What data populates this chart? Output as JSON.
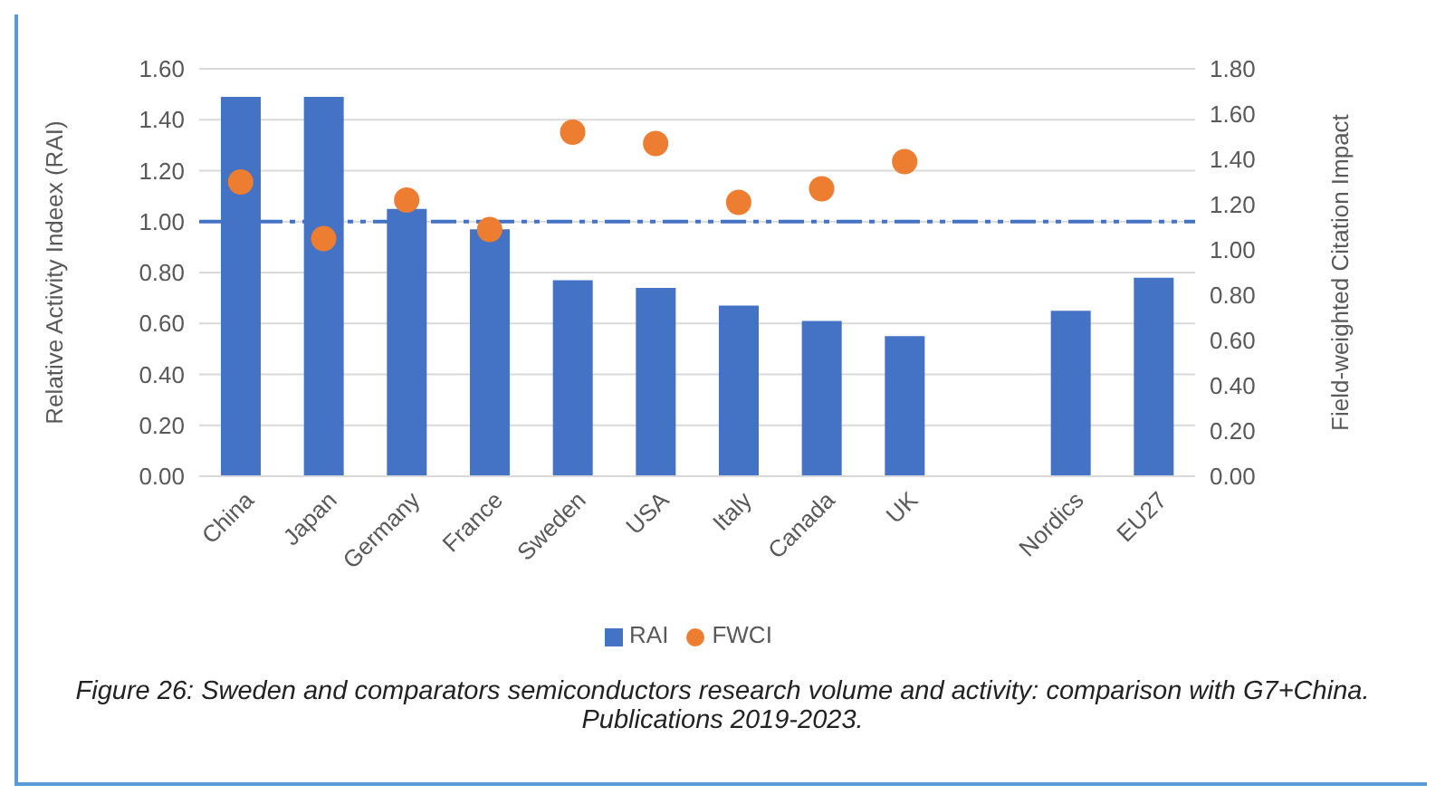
{
  "chart_data": {
    "type": "bar",
    "categories": [
      "China",
      "Japan",
      "Germany",
      "France",
      "Sweden",
      "USA",
      "Italy",
      "Canada",
      "UK",
      null,
      "Nordics",
      "EU27"
    ],
    "series": [
      {
        "name": "RAI",
        "color": "#4472c4",
        "values": [
          1.49,
          1.49,
          1.05,
          0.97,
          0.77,
          0.74,
          0.67,
          0.61,
          0.55,
          null,
          0.65,
          0.78
        ]
      },
      {
        "name": "FWCI",
        "type": "scatter",
        "axis": "y2",
        "marker": "circle",
        "color": "#ed7d31",
        "values": [
          1.3,
          1.05,
          1.22,
          1.09,
          1.52,
          1.47,
          1.21,
          1.27,
          1.39,
          null,
          null,
          null
        ]
      }
    ],
    "ylabel": "Relative Activity Indeex (RAI)",
    "y2label": "Field-weighted Citation Impact",
    "ylim": [
      0,
      1.6
    ],
    "yticks": [
      {
        "value": 0,
        "label": "0.00"
      },
      {
        "value": 0.2,
        "label": "0.20"
      },
      {
        "value": 0.4,
        "label": "0.40"
      },
      {
        "value": 0.6,
        "label": "0.60"
      },
      {
        "value": 0.8,
        "label": "0.80"
      },
      {
        "value": 1,
        "label": "1.00"
      },
      {
        "value": 1.2,
        "label": "1.20"
      },
      {
        "value": 1.4,
        "label": "1.40"
      },
      {
        "value": 1.6,
        "label": "1.60"
      }
    ],
    "y2lim": [
      0,
      1.8
    ],
    "y2ticks": [
      {
        "value": 0,
        "label": "0.00"
      },
      {
        "value": 0.2,
        "label": "0.20"
      },
      {
        "value": 0.4,
        "label": "0.40"
      },
      {
        "value": 0.6,
        "label": "0.60"
      },
      {
        "value": 0.8,
        "label": "0.80"
      },
      {
        "value": 1,
        "label": "1.00"
      },
      {
        "value": 1.2,
        "label": "1.20"
      },
      {
        "value": 1.4,
        "label": "1.40"
      },
      {
        "value": 1.6,
        "label": "1.60"
      },
      {
        "value": 1.8,
        "label": "1.80"
      }
    ],
    "ref_lines": [
      {
        "axis": "y",
        "value": 1,
        "color": "#4472c4",
        "line_style": "dashed"
      }
    ],
    "grid": "y",
    "legend": "bottom",
    "annotations": [
      "Figure 26: Sweden and comparators semiconductors research volume and activity: comparison with G7+China. Publications 2019-2023."
    ]
  }
}
